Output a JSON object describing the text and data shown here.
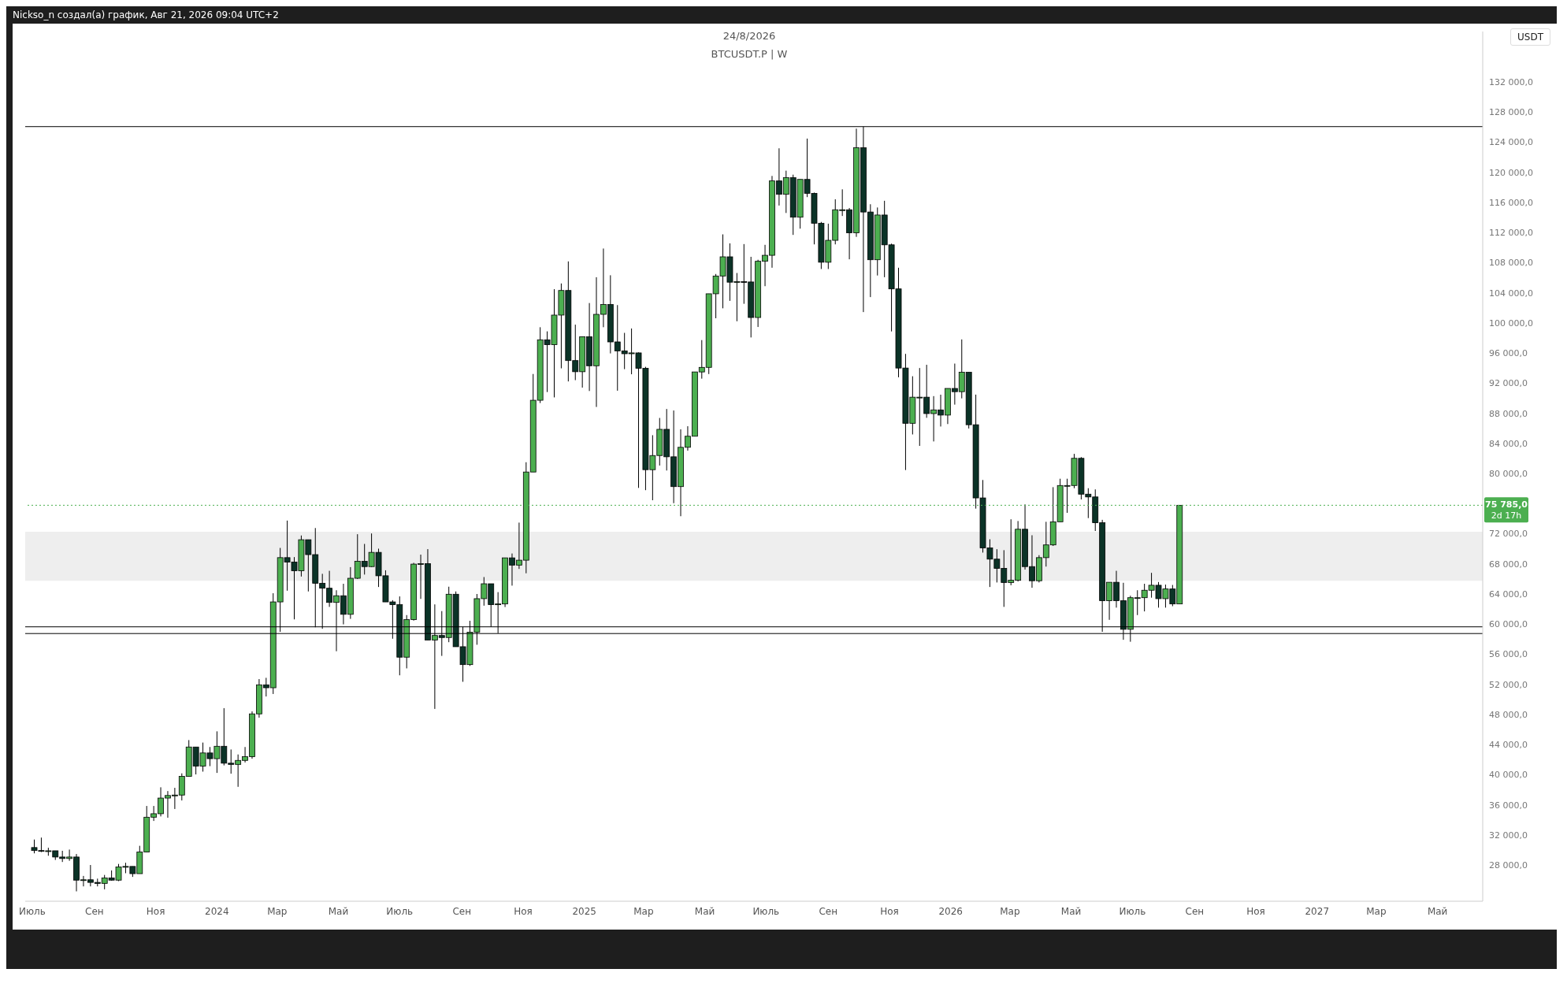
{
  "chart_data": {
    "type": "candlestick",
    "title": "24/8/2026",
    "subtitle": "BTCUSDT.P | W",
    "ylabel": "USDT",
    "annotations": [
      "Nickso_n создал(а) график, Авг 21, 2026 09:04 UTC+2",
      "2d 17h"
    ],
    "colors": [
      "#0b3327",
      "#0b3327",
      "#4caf50",
      "#0b3327",
      "#0b3327",
      "#4caf50",
      "#0b3327",
      "#4caf50",
      "#0b3327",
      "#0b3327",
      "#4caf50",
      "#0b3327",
      "#4caf50",
      "#4caf50",
      "#0b3327",
      "#4caf50",
      "#4caf50",
      "#4caf50",
      "#4caf50",
      "#4caf50",
      "#4caf50",
      "#4caf50",
      "#4caf50",
      "#0b3327",
      "#4caf50",
      "#0b3327",
      "#4caf50",
      "#0b3327",
      "#0b3327",
      "#4caf50",
      "#4caf50",
      "#4caf50",
      "#4caf50",
      "#0b3327",
      "#4caf50",
      "#4caf50",
      "#0b3327",
      "#0b3327",
      "#4caf50",
      "#0b3327",
      "#0b3327",
      "#0b3327",
      "#0b3327",
      "#4caf50",
      "#0b3327",
      "#4caf50",
      "#4caf50",
      "#0b3327",
      "#4caf50",
      "#0b3327",
      "#0b3327",
      "#0b3327",
      "#0b3327",
      "#4caf50",
      "#4caf50",
      "#4caf50",
      "#0b3327",
      "#4caf50",
      "#0b3327",
      "#4caf50",
      "#0b3327",
      "#0b3327",
      "#4caf50",
      "#4caf50",
      "#4caf50",
      "#0b3327",
      "#4caf50",
      "#4caf50",
      "#0b3327",
      "#4caf50",
      "#4caf50",
      "#4caf50",
      "#4caf50",
      "#0b3327",
      "#4caf50",
      "#4caf50",
      "#0b3327",
      "#0b3327",
      "#4caf50",
      "#0b3327",
      "#4caf50",
      "#4caf50",
      "#0b3327",
      "#0b3327",
      "#0b3327",
      "#4caf50",
      "#0b3327",
      "#0b3327",
      "#4caf50",
      "#4caf50",
      "#0b3327",
      "#0b3327",
      "#4caf50",
      "#4caf50",
      "#4caf50",
      "#4caf50",
      "#4caf50",
      "#4caf50",
      "#4caf50",
      "#0b3327",
      "#4caf50",
      "#0b3327",
      "#0b3327",
      "#4caf50",
      "#4caf50",
      "#4caf50",
      "#0b3327",
      "#4caf50",
      "#0b3327",
      "#4caf50",
      "#0b3327",
      "#0b3327",
      "#0b3327",
      "#4caf50",
      "#4caf50",
      "#4caf50",
      "#0b3327",
      "#4caf50",
      "#0b3327",
      "#0b3327",
      "#4caf50",
      "#0b3327",
      "#0b3327",
      "#0b3327",
      "#0b3327",
      "#4caf50",
      "#4caf50",
      "#0b3327",
      "#4caf50",
      "#0b3327",
      "#4caf50",
      "#0b3327",
      "#4caf50",
      "#0b3327",
      "#0b3327",
      "#0b3327",
      "#0b3327",
      "#0b3327",
      "#0b3327",
      "#4caf50",
      "#4caf50",
      "#0b3327",
      "#0b3327",
      "#4caf50",
      "#4caf50",
      "#4caf50",
      "#4caf50",
      "#4caf50",
      "#4caf50",
      "#0b3327",
      "#0b3327",
      "#0b3327",
      "#0b3327",
      "#4caf50",
      "#0b3327",
      "#0b3327",
      "#4caf50",
      "#4caf50",
      "#4caf50",
      "#4caf50",
      "#0b3327",
      "#4caf50",
      "#0b3327",
      "#4caf50"
    ],
    "x": [
      "2023-07-03",
      "2023-07-10",
      "2023-07-17",
      "2023-07-24",
      "2023-07-31",
      "2023-08-07",
      "2023-08-14",
      "2023-08-21",
      "2023-08-28",
      "2023-09-04",
      "2023-09-11",
      "2023-09-18",
      "2023-09-25",
      "2023-10-02",
      "2023-10-09",
      "2023-10-16",
      "2023-10-23",
      "2023-10-30",
      "2023-11-06",
      "2023-11-13",
      "2023-11-20",
      "2023-11-27",
      "2023-12-04",
      "2023-12-11",
      "2023-12-18",
      "2023-12-25",
      "2024-01-01",
      "2024-01-08",
      "2024-01-15",
      "2024-01-22",
      "2024-01-29",
      "2024-02-05",
      "2024-02-12",
      "2024-02-19",
      "2024-02-26",
      "2024-03-04",
      "2024-03-11",
      "2024-03-18",
      "2024-03-25",
      "2024-04-01",
      "2024-04-08",
      "2024-04-15",
      "2024-04-22",
      "2024-04-29",
      "2024-05-06",
      "2024-05-13",
      "2024-05-20",
      "2024-05-27",
      "2024-06-03",
      "2024-06-10",
      "2024-06-17",
      "2024-06-24",
      "2024-07-01",
      "2024-07-08",
      "2024-07-15",
      "2024-07-22",
      "2024-07-29",
      "2024-08-05",
      "2024-08-12",
      "2024-08-19",
      "2024-08-26",
      "2024-09-02",
      "2024-09-09",
      "2024-09-16",
      "2024-09-23",
      "2024-09-30",
      "2024-10-07",
      "2024-10-14",
      "2024-10-21",
      "2024-10-28",
      "2024-11-04",
      "2024-11-11",
      "2024-11-18",
      "2024-11-25",
      "2024-12-02",
      "2024-12-09",
      "2024-12-16",
      "2024-12-23",
      "2024-12-30",
      "2025-01-06",
      "2025-01-13",
      "2025-01-20",
      "2025-01-27",
      "2025-02-03",
      "2025-02-10",
      "2025-02-17",
      "2025-02-24",
      "2025-03-03",
      "2025-03-10",
      "2025-03-17",
      "2025-03-24",
      "2025-03-31",
      "2025-04-07",
      "2025-04-14",
      "2025-04-21",
      "2025-04-28",
      "2025-05-05",
      "2025-05-12",
      "2025-05-19",
      "2025-05-26",
      "2025-06-02",
      "2025-06-09",
      "2025-06-16",
      "2025-06-23",
      "2025-06-30",
      "2025-07-07",
      "2025-07-14",
      "2025-07-21",
      "2025-07-28",
      "2025-08-04",
      "2025-08-11",
      "2025-08-18",
      "2025-08-25",
      "2025-09-01",
      "2025-09-08",
      "2025-09-15",
      "2025-09-22",
      "2025-09-29",
      "2025-10-06",
      "2025-10-13",
      "2025-10-20",
      "2025-10-27",
      "2025-11-03",
      "2025-11-10",
      "2025-11-17",
      "2025-11-24",
      "2025-12-01",
      "2025-12-08",
      "2025-12-15",
      "2025-12-22",
      "2025-12-29",
      "2026-01-05",
      "2026-01-12",
      "2026-01-19",
      "2026-01-26",
      "2026-02-02",
      "2026-02-09",
      "2026-02-16",
      "2026-02-23",
      "2026-03-02",
      "2026-03-09",
      "2026-03-16",
      "2026-03-23",
      "2026-03-30",
      "2026-04-06",
      "2026-04-13",
      "2026-04-20",
      "2026-04-27",
      "2026-05-04",
      "2026-05-11",
      "2026-05-18",
      "2026-05-25",
      "2026-06-01",
      "2026-06-08",
      "2026-06-15",
      "2026-06-22",
      "2026-06-29",
      "2026-07-06",
      "2026-07-13",
      "2026-07-20",
      "2026-07-27",
      "2026-08-03",
      "2026-08-10",
      "2026-08-17"
    ],
    "ohlc": [
      [
        30330,
        31390,
        29560,
        29930
      ],
      [
        29930,
        31650,
        29730,
        29900
      ],
      [
        29900,
        30300,
        29240,
        29900
      ],
      [
        29900,
        29900,
        28680,
        29070
      ],
      [
        29070,
        29900,
        28410,
        28870
      ],
      [
        28870,
        30060,
        28570,
        29070
      ],
      [
        29070,
        29470,
        24510,
        26000
      ],
      [
        26000,
        26560,
        25170,
        26050
      ],
      [
        26050,
        28010,
        25170,
        25700
      ],
      [
        25700,
        26200,
        25170,
        25570
      ],
      [
        25570,
        26690,
        24780,
        26300
      ],
      [
        26300,
        27290,
        25930,
        26000
      ],
      [
        26000,
        28150,
        25870,
        27750
      ],
      [
        27750,
        28310,
        26920,
        27820
      ],
      [
        27820,
        27820,
        26430,
        26860
      ],
      [
        26860,
        30560,
        26860,
        29730
      ],
      [
        29730,
        35850,
        29730,
        34360
      ],
      [
        34360,
        35850,
        33860,
        34820
      ],
      [
        34820,
        38330,
        34460,
        36900
      ],
      [
        36900,
        37830,
        34290,
        37240
      ],
      [
        37240,
        38260,
        35450,
        37300
      ],
      [
        37300,
        40180,
        36580,
        39780
      ],
      [
        39780,
        44600,
        39780,
        43680
      ],
      [
        43680,
        43680,
        40040,
        41140
      ],
      [
        41140,
        44270,
        40410,
        42890
      ],
      [
        42890,
        43680,
        41140,
        42130
      ],
      [
        42130,
        45760,
        40240,
        43780
      ],
      [
        43780,
        48840,
        41240,
        41530
      ],
      [
        41530,
        43350,
        40140,
        41370
      ],
      [
        41370,
        42690,
        38390,
        41900
      ],
      [
        41900,
        43680,
        41630,
        42390
      ],
      [
        42390,
        48410,
        42130,
        48080
      ],
      [
        48080,
        52700,
        47580,
        51940
      ],
      [
        51940,
        52870,
        50390,
        51550
      ],
      [
        51550,
        64100,
        50720,
        62950
      ],
      [
        62950,
        70120,
        58980,
        68830
      ],
      [
        68830,
        73750,
        64440,
        68240
      ],
      [
        68240,
        68900,
        60630,
        67080
      ],
      [
        67080,
        71770,
        66320,
        71210
      ],
      [
        71210,
        71210,
        64340,
        69230
      ],
      [
        69230,
        72760,
        59580,
        65430
      ],
      [
        65430,
        66680,
        59380,
        64770
      ],
      [
        64770,
        67080,
        62290,
        62880
      ],
      [
        62880,
        64500,
        56400,
        63770
      ],
      [
        63770,
        65360,
        59970,
        61300
      ],
      [
        61300,
        67570,
        60700,
        66090
      ],
      [
        66090,
        71940,
        65990,
        68340
      ],
      [
        68340,
        70650,
        66580,
        67640
      ],
      [
        67640,
        72040,
        67580,
        69530
      ],
      [
        69530,
        70020,
        64930,
        66420
      ],
      [
        66420,
        67150,
        62950,
        62950
      ],
      [
        62950,
        63180,
        58060,
        62580
      ],
      [
        62580,
        63680,
        53200,
        55610
      ],
      [
        55610,
        61200,
        54120,
        60600
      ],
      [
        60600,
        68140,
        60470,
        67970
      ],
      [
        67970,
        69230,
        63350,
        68040
      ],
      [
        68040,
        69960,
        57890,
        57890
      ],
      [
        57890,
        62620,
        48740,
        58490
      ],
      [
        58490,
        61730,
        55780,
        58220
      ],
      [
        58220,
        64970,
        57600,
        63970
      ],
      [
        63970,
        64340,
        57000,
        57000
      ],
      [
        57000,
        59640,
        52340,
        54620
      ],
      [
        54620,
        60440,
        54450,
        58920
      ],
      [
        58920,
        64000,
        57260,
        63380
      ],
      [
        63380,
        66250,
        62450,
        65360
      ],
      [
        65360,
        65360,
        59640,
        62580
      ],
      [
        62580,
        64250,
        58790,
        62680
      ],
      [
        62680,
        68800,
        62270,
        68800
      ],
      [
        68800,
        69380,
        65110,
        67840
      ],
      [
        67840,
        73480,
        67330,
        68490
      ],
      [
        68490,
        81500,
        66750,
        80200
      ],
      [
        80200,
        93220,
        80200,
        89730
      ],
      [
        89730,
        99430,
        89360,
        97760
      ],
      [
        97760,
        98880,
        90820,
        97110
      ],
      [
        97110,
        104480,
        90110,
        101040
      ],
      [
        101040,
        105240,
        93970,
        104310
      ],
      [
        104310,
        108170,
        92230,
        95000
      ],
      [
        95000,
        99770,
        92400,
        93520
      ],
      [
        93520,
        98170,
        91410,
        98170
      ],
      [
        98170,
        102640,
        90960,
        94310
      ],
      [
        94310,
        106070,
        88840,
        101140
      ],
      [
        101140,
        109880,
        99430,
        102440
      ],
      [
        102440,
        106330,
        95950,
        97480
      ],
      [
        97480,
        102370,
        91000,
        96290
      ],
      [
        96290,
        98680,
        93860,
        95910
      ],
      [
        95910,
        99260,
        93180,
        96020
      ],
      [
        96020,
        96080,
        78090,
        93970
      ],
      [
        93970,
        94170,
        77790,
        80510
      ],
      [
        80510,
        85090,
        76450,
        82390
      ],
      [
        82390,
        87380,
        81060,
        85870
      ],
      [
        85870,
        88570,
        80400,
        82220
      ],
      [
        82220,
        88370,
        76060,
        78260
      ],
      [
        78260,
        85870,
        74330,
        83480
      ],
      [
        83480,
        86280,
        83040,
        84950
      ],
      [
        84950,
        93490,
        84950,
        93490
      ],
      [
        93490,
        97720,
        92600,
        94100
      ],
      [
        94100,
        103870,
        93210,
        103870
      ],
      [
        103870,
        106500,
        100620,
        106230
      ],
      [
        106230,
        111760,
        101940,
        108780
      ],
      [
        108780,
        110570,
        102930,
        105410
      ],
      [
        105410,
        106630,
        100220,
        105480
      ],
      [
        105480,
        110470,
        102540,
        105440
      ],
      [
        105440,
        108780,
        98070,
        100720
      ],
      [
        100720,
        108390,
        99460,
        108190
      ],
      [
        108190,
        110370,
        104880,
        108980
      ],
      [
        108980,
        119520,
        107330,
        118860
      ],
      [
        118860,
        123190,
        115590,
        117080
      ],
      [
        117080,
        120220,
        114600,
        119290
      ],
      [
        119290,
        119690,
        111690,
        114040
      ],
      [
        114040,
        119060,
        112520,
        119060
      ],
      [
        119060,
        124480,
        116710,
        117210
      ],
      [
        117210,
        117310,
        110430,
        113240
      ],
      [
        113240,
        113410,
        107160,
        108060
      ],
      [
        108060,
        113180,
        107160,
        110970
      ],
      [
        110970,
        116420,
        110430,
        115030
      ],
      [
        115030,
        117740,
        114200,
        115030
      ],
      [
        115030,
        115260,
        108450,
        111960
      ],
      [
        111960,
        125800,
        111430,
        123260
      ],
      [
        123260,
        126070,
        101440,
        114730
      ],
      [
        114730,
        115760,
        103430,
        108390
      ],
      [
        108390,
        115330,
        106300,
        114330
      ],
      [
        114330,
        116220,
        106070,
        110370
      ],
      [
        110370,
        110530,
        98870,
        104520
      ],
      [
        104520,
        107330,
        92780,
        94010
      ],
      [
        94010,
        95890,
        80460,
        86670
      ],
      [
        86670,
        92920,
        85190,
        90140
      ],
      [
        90140,
        94010,
        83670,
        90140
      ],
      [
        90140,
        94440,
        87400,
        87960
      ],
      [
        87960,
        90280,
        84260,
        88450
      ],
      [
        88450,
        90470,
        86240,
        87760
      ],
      [
        87760,
        91300,
        86570,
        91300
      ],
      [
        91300,
        94600,
        89150,
        90870
      ],
      [
        90870,
        97810,
        89980,
        93450
      ],
      [
        93450,
        93450,
        85980,
        86480
      ],
      [
        86480,
        90480,
        75340,
        76760
      ],
      [
        76760,
        79140,
        69500,
        70120
      ],
      [
        70120,
        71270,
        64930,
        68630
      ],
      [
        68630,
        69950,
        65530,
        67410
      ],
      [
        67410,
        69820,
        62290,
        65530
      ],
      [
        65530,
        73920,
        65160,
        65820
      ],
      [
        65820,
        73690,
        65660,
        72600
      ],
      [
        72600,
        75900,
        67240,
        67640
      ],
      [
        67640,
        71800,
        64830,
        65760
      ],
      [
        65760,
        69160,
        65530,
        68830
      ],
      [
        68830,
        73590,
        67640,
        70520
      ],
      [
        70520,
        78190,
        70380,
        73590
      ],
      [
        73590,
        79310,
        73590,
        78410
      ],
      [
        78410,
        79310,
        74780,
        78410
      ],
      [
        78410,
        82610,
        78050,
        82020
      ],
      [
        82020,
        82180,
        76560,
        77260
      ],
      [
        77260,
        78050,
        74080,
        76890
      ],
      [
        76890,
        77890,
        72370,
        73460
      ],
      [
        73460,
        73850,
        58980,
        63110
      ],
      [
        63110,
        65560,
        60570,
        65560
      ],
      [
        65560,
        67080,
        62190,
        63110
      ],
      [
        63110,
        65490,
        57920,
        59310
      ],
      [
        59310,
        63770,
        57660,
        63510
      ],
      [
        63510,
        64500,
        61200,
        63510
      ],
      [
        63510,
        65360,
        61690,
        64500
      ],
      [
        64500,
        66810,
        63510,
        65160
      ],
      [
        65160,
        65590,
        62190,
        63380
      ],
      [
        63380,
        65250,
        62190,
        64670
      ],
      [
        64670,
        65200,
        62380,
        62680
      ],
      [
        62680,
        75785,
        62680,
        75785
      ]
    ],
    "xlim": [
      "2023-06-24",
      "2027-06-15"
    ],
    "xticks": [
      {
        "value": "2023-07-01",
        "label": "Июль"
      },
      {
        "value": "2023-09-01",
        "label": "Сен"
      },
      {
        "value": "2023-11-01",
        "label": "Ноя"
      },
      {
        "value": "2024-01-01",
        "label": "2024"
      },
      {
        "value": "2024-03-01",
        "label": "Мар"
      },
      {
        "value": "2024-05-01",
        "label": "Май"
      },
      {
        "value": "2024-07-01",
        "label": "Июль"
      },
      {
        "value": "2024-09-01",
        "label": "Сен"
      },
      {
        "value": "2024-11-01",
        "label": "Ноя"
      },
      {
        "value": "2025-01-01",
        "label": "2025"
      },
      {
        "value": "2025-03-01",
        "label": "Мар"
      },
      {
        "value": "2025-05-01",
        "label": "Май"
      },
      {
        "value": "2025-07-01",
        "label": "Июль"
      },
      {
        "value": "2025-09-01",
        "label": "Сен"
      },
      {
        "value": "2025-11-01",
        "label": "Ноя"
      },
      {
        "value": "2026-01-01",
        "label": "2026"
      },
      {
        "value": "2026-03-01",
        "label": "Мар"
      },
      {
        "value": "2026-05-01",
        "label": "Май"
      },
      {
        "value": "2026-07-01",
        "label": "Июль"
      },
      {
        "value": "2026-09-01",
        "label": "Сен"
      },
      {
        "value": "2026-11-01",
        "label": "Ноя"
      },
      {
        "value": "2027-01-01",
        "label": "2027"
      },
      {
        "value": "2027-03-01",
        "label": "Мар"
      },
      {
        "value": "2027-05-01",
        "label": "Май"
      }
    ],
    "ylim": [
      23200,
      138700
    ],
    "yticks": [
      {
        "value": 28000,
        "label": "28 000,0"
      },
      {
        "value": 32000,
        "label": "32 000,0"
      },
      {
        "value": 36000,
        "label": "36 000,0"
      },
      {
        "value": 40000,
        "label": "40 000,0"
      },
      {
        "value": 44000,
        "label": "44 000,0"
      },
      {
        "value": 48000,
        "label": "48 000,0"
      },
      {
        "value": 52000,
        "label": "52 000,0"
      },
      {
        "value": 56000,
        "label": "56 000,0"
      },
      {
        "value": 60000,
        "label": "60 000,0"
      },
      {
        "value": 64000,
        "label": "64 000,0"
      },
      {
        "value": 68000,
        "label": "68 000,0"
      },
      {
        "value": 72000,
        "label": "72 000,0"
      },
      {
        "value": 80000,
        "label": "80 000,0"
      },
      {
        "value": 84000,
        "label": "84 000,0"
      },
      {
        "value": 88000,
        "label": "88 000,0"
      },
      {
        "value": 92000,
        "label": "92 000,0"
      },
      {
        "value": 96000,
        "label": "96 000,0"
      },
      {
        "value": 100000,
        "label": "100 000,0"
      },
      {
        "value": 104000,
        "label": "104 000,0"
      },
      {
        "value": 108000,
        "label": "108 000,0"
      },
      {
        "value": 112000,
        "label": "112 000,0"
      },
      {
        "value": 116000,
        "label": "116 000,0"
      },
      {
        "value": 120000,
        "label": "120 000,0"
      },
      {
        "value": 124000,
        "label": "124 000,0"
      },
      {
        "value": 128000,
        "label": "128 000,0"
      },
      {
        "value": 132000,
        "label": "132 000,0"
      }
    ],
    "ref_lines": [
      {
        "axis": "y",
        "value": 126070,
        "color": "#000000"
      },
      {
        "axis": "y",
        "value": 58750,
        "color": "#000000"
      },
      {
        "axis": "y",
        "value": 59640,
        "color": "#000000"
      },
      {
        "axis": "y",
        "value": 75785,
        "label": "75 785,0",
        "color": "#4caf50",
        "line_style": "dotted"
      }
    ],
    "bands": [
      {
        "axis": "y",
        "from": 65760,
        "to": 72270,
        "color": "#eeeeee"
      }
    ],
    "grid": false,
    "legend": false
  }
}
